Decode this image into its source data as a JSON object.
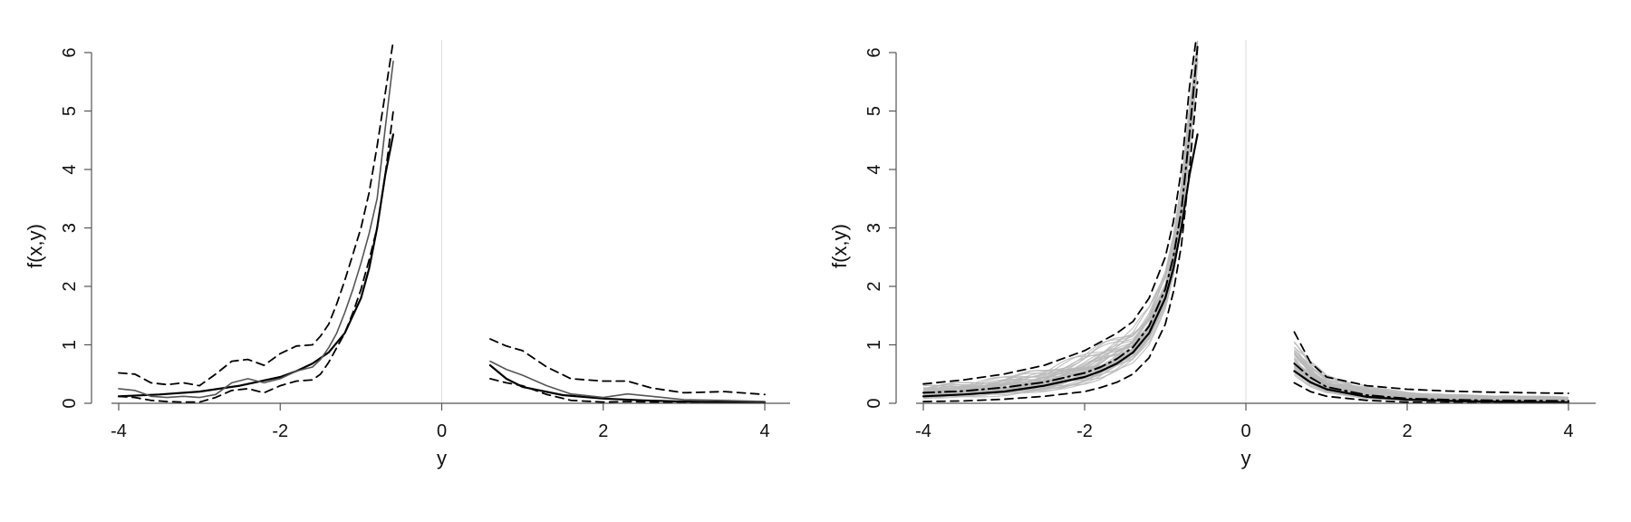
{
  "chart_data": [
    {
      "type": "line",
      "xlabel": "y",
      "ylabel": "f(x,y)",
      "xlim": [
        -4,
        4
      ],
      "ylim": [
        0,
        6
      ],
      "xticks": [
        -4,
        -2,
        0,
        2,
        4
      ],
      "yticks": [
        0,
        1,
        2,
        3,
        4,
        5,
        6
      ],
      "xtick_labels": [
        "-4",
        "-2",
        "0",
        "2",
        "4"
      ],
      "ytick_labels": [
        "0",
        "1",
        "2",
        "3",
        "4",
        "5",
        "6"
      ],
      "vline": 0,
      "grid": false,
      "series": [
        {
          "role": "true",
          "color": "#000000",
          "style": "solid",
          "width": 2.2,
          "segments": [
            {
              "x": [
                -4,
                -3.5,
                -3,
                -2.5,
                -2,
                -1.8,
                -1.6,
                -1.4,
                -1.2,
                -1.0,
                -0.9,
                -0.8,
                -0.7,
                -0.6
              ],
              "y": [
                0.12,
                0.15,
                0.2,
                0.3,
                0.45,
                0.55,
                0.68,
                0.87,
                1.2,
                1.8,
                2.3,
                3.0,
                3.9,
                4.6
              ]
            },
            {
              "x": [
                0.6,
                0.8,
                1.0,
                1.5,
                2.0,
                2.5,
                3.0,
                3.5,
                4.0
              ],
              "y": [
                0.65,
                0.42,
                0.28,
                0.14,
                0.08,
                0.05,
                0.03,
                0.02,
                0.015
              ]
            }
          ]
        },
        {
          "role": "estimate",
          "color": "#555555",
          "style": "solid",
          "width": 1.6,
          "segments": [
            {
              "x": [
                -4,
                -3.8,
                -3.6,
                -3.4,
                -3.2,
                -3.0,
                -2.8,
                -2.6,
                -2.4,
                -2.2,
                -2.0,
                -1.8,
                -1.6,
                -1.5,
                -1.4,
                -1.3,
                -1.2,
                -1.1,
                -1.0,
                -0.9,
                -0.8,
                -0.7,
                -0.6
              ],
              "y": [
                0.25,
                0.22,
                0.12,
                0.1,
                0.12,
                0.1,
                0.15,
                0.35,
                0.42,
                0.35,
                0.42,
                0.55,
                0.62,
                0.75,
                0.95,
                1.2,
                1.55,
                1.95,
                2.4,
                2.9,
                3.5,
                4.7,
                5.85
              ]
            },
            {
              "x": [
                0.6,
                0.8,
                1.0,
                1.3,
                1.6,
                2.0,
                2.3,
                2.6,
                3.0,
                3.5,
                4.0
              ],
              "y": [
                0.72,
                0.58,
                0.48,
                0.3,
                0.16,
                0.1,
                0.16,
                0.12,
                0.06,
                0.05,
                0.03
              ]
            }
          ]
        },
        {
          "role": "upper band",
          "color": "#000000",
          "style": "dashed",
          "width": 1.8,
          "segments": [
            {
              "x": [
                -4,
                -3.8,
                -3.6,
                -3.4,
                -3.2,
                -3.0,
                -2.8,
                -2.6,
                -2.4,
                -2.2,
                -2.0,
                -1.8,
                -1.6,
                -1.5,
                -1.4,
                -1.3,
                -1.2,
                -1.1,
                -1.0,
                -0.9,
                -0.8,
                -0.7,
                -0.6
              ],
              "y": [
                0.52,
                0.5,
                0.35,
                0.32,
                0.35,
                0.3,
                0.5,
                0.72,
                0.75,
                0.65,
                0.85,
                0.98,
                1.0,
                1.15,
                1.35,
                1.7,
                2.1,
                2.55,
                3.0,
                3.6,
                4.4,
                5.3,
                6.2
              ]
            },
            {
              "x": [
                0.6,
                0.8,
                1.0,
                1.3,
                1.6,
                2.0,
                2.3,
                2.6,
                3.0,
                3.5,
                4.0
              ],
              "y": [
                1.1,
                0.98,
                0.9,
                0.62,
                0.42,
                0.38,
                0.38,
                0.26,
                0.18,
                0.2,
                0.15
              ]
            }
          ]
        },
        {
          "role": "lower band",
          "color": "#000000",
          "style": "dashed",
          "width": 1.8,
          "segments": [
            {
              "x": [
                -4,
                -3.8,
                -3.6,
                -3.4,
                -3.2,
                -3.0,
                -2.8,
                -2.6,
                -2.4,
                -2.2,
                -2.0,
                -1.8,
                -1.6,
                -1.5,
                -1.4,
                -1.3,
                -1.2,
                -1.1,
                -1.0,
                -0.9,
                -0.8,
                -0.7,
                -0.6
              ],
              "y": [
                0.12,
                0.1,
                0.05,
                0.03,
                0.02,
                0.02,
                0.1,
                0.22,
                0.25,
                0.18,
                0.3,
                0.38,
                0.4,
                0.5,
                0.7,
                0.95,
                1.2,
                1.55,
                1.95,
                2.45,
                3.0,
                3.9,
                5.0
              ]
            },
            {
              "x": [
                0.6,
                0.8,
                1.0,
                1.3,
                1.6,
                2.0,
                2.3,
                2.6,
                3.0,
                3.5,
                4.0
              ],
              "y": [
                0.42,
                0.35,
                0.3,
                0.15,
                0.05,
                0.02,
                0.03,
                0.02,
                0.01,
                0.01,
                0.01
              ]
            }
          ]
        }
      ]
    },
    {
      "type": "line",
      "xlabel": "y",
      "ylabel": "f(x,y)",
      "xlim": [
        -4,
        4
      ],
      "ylim": [
        0,
        6
      ],
      "xticks": [
        -4,
        -2,
        0,
        2,
        4
      ],
      "yticks": [
        0,
        1,
        2,
        3,
        4,
        5,
        6
      ],
      "xtick_labels": [
        "-4",
        "-2",
        "0",
        "2",
        "4"
      ],
      "ytick_labels": [
        "0",
        "1",
        "2",
        "3",
        "4",
        "5",
        "6"
      ],
      "vline": 0,
      "grid": false,
      "replicate_band": {
        "color": "#b8b8b8",
        "count": 40,
        "segments": [
          {
            "x": [
              -4,
              -3.5,
              -3,
              -2.5,
              -2,
              -1.8,
              -1.6,
              -1.4,
              -1.2,
              -1.0,
              -0.9,
              -0.8,
              -0.7,
              -0.6
            ],
            "low": [
              0.05,
              0.07,
              0.1,
              0.16,
              0.25,
              0.32,
              0.45,
              0.62,
              0.95,
              1.55,
              2.1,
              2.9,
              4.2,
              5.7
            ],
            "high": [
              0.32,
              0.38,
              0.48,
              0.62,
              0.9,
              1.05,
              1.2,
              1.35,
              1.7,
              2.3,
              2.9,
              3.8,
              5.2,
              6.3
            ]
          },
          {
            "x": [
              0.6,
              0.8,
              1.0,
              1.5,
              2.0,
              2.5,
              3.0,
              3.5,
              4.0
            ],
            "low": [
              0.42,
              0.25,
              0.15,
              0.06,
              0.03,
              0.02,
              0.01,
              0.01,
              0.01
            ],
            "high": [
              1.1,
              0.75,
              0.5,
              0.3,
              0.2,
              0.16,
              0.14,
              0.13,
              0.12
            ]
          }
        ]
      },
      "series": [
        {
          "role": "true",
          "color": "#000000",
          "style": "solid",
          "width": 2.2,
          "segments": [
            {
              "x": [
                -4,
                -3.5,
                -3,
                -2.5,
                -2,
                -1.8,
                -1.6,
                -1.4,
                -1.2,
                -1.0,
                -0.9,
                -0.8,
                -0.7,
                -0.6
              ],
              "y": [
                0.12,
                0.15,
                0.2,
                0.3,
                0.45,
                0.55,
                0.68,
                0.87,
                1.2,
                1.8,
                2.3,
                3.0,
                3.9,
                4.6
              ]
            },
            {
              "x": [
                0.6,
                0.8,
                1.0,
                1.5,
                2.0,
                2.5,
                3.0,
                3.5,
                4.0
              ],
              "y": [
                0.55,
                0.36,
                0.24,
                0.11,
                0.06,
                0.04,
                0.03,
                0.02,
                0.015
              ]
            }
          ]
        },
        {
          "role": "mean",
          "color": "#000000",
          "style": "dotdash",
          "width": 2.0,
          "segments": [
            {
              "x": [
                -4,
                -3.5,
                -3,
                -2.5,
                -2,
                -1.8,
                -1.6,
                -1.4,
                -1.2,
                -1.0,
                -0.9,
                -0.8,
                -0.7,
                -0.6
              ],
              "y": [
                0.18,
                0.21,
                0.27,
                0.36,
                0.52,
                0.62,
                0.76,
                0.96,
                1.32,
                1.95,
                2.5,
                3.3,
                4.6,
                6.1
              ]
            },
            {
              "x": [
                0.6,
                0.8,
                1.0,
                1.5,
                2.0,
                2.5,
                3.0,
                3.5,
                4.0
              ],
              "y": [
                0.68,
                0.44,
                0.28,
                0.14,
                0.08,
                0.06,
                0.05,
                0.045,
                0.04
              ]
            }
          ]
        },
        {
          "role": "upper band",
          "color": "#000000",
          "style": "dashed",
          "width": 1.8,
          "segments": [
            {
              "x": [
                -4,
                -3.5,
                -3,
                -2.5,
                -2,
                -1.8,
                -1.6,
                -1.4,
                -1.2,
                -1.0,
                -0.9,
                -0.8,
                -0.7,
                -0.6
              ],
              "y": [
                0.33,
                0.4,
                0.5,
                0.65,
                0.9,
                1.05,
                1.2,
                1.4,
                1.8,
                2.5,
                3.1,
                4.0,
                5.4,
                6.4
              ]
            },
            {
              "x": [
                0.6,
                0.8,
                1.0,
                1.5,
                2.0,
                2.5,
                3.0,
                3.5,
                4.0
              ],
              "y": [
                1.22,
                0.7,
                0.45,
                0.3,
                0.24,
                0.21,
                0.19,
                0.18,
                0.17
              ]
            }
          ]
        },
        {
          "role": "lower band",
          "color": "#000000",
          "style": "dashed",
          "width": 1.8,
          "segments": [
            {
              "x": [
                -4,
                -3.5,
                -3,
                -2.5,
                -2,
                -1.8,
                -1.6,
                -1.4,
                -1.2,
                -1.0,
                -0.9,
                -0.8,
                -0.7,
                -0.6
              ],
              "y": [
                0.03,
                0.04,
                0.07,
                0.12,
                0.2,
                0.27,
                0.36,
                0.5,
                0.78,
                1.35,
                1.9,
                2.7,
                4.0,
                5.5
              ]
            },
            {
              "x": [
                0.6,
                0.8,
                1.0,
                1.5,
                2.0,
                2.5,
                3.0,
                3.5,
                4.0
              ],
              "y": [
                0.35,
                0.2,
                0.12,
                0.05,
                0.02,
                0.01,
                0.01,
                0.01,
                0.01
              ]
            }
          ]
        }
      ]
    }
  ]
}
